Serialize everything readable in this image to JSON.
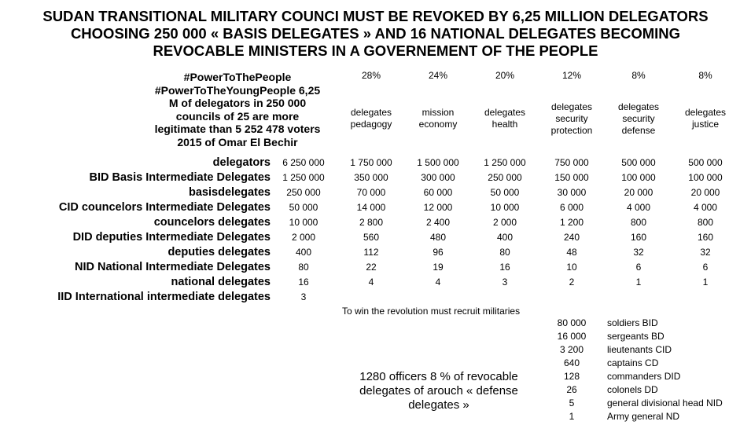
{
  "title": [
    "SUDAN TRANSITIONAL MILITARY COUNCI MUST BE REVOKED BY 6,25 MILLION DELEGATORS",
    "CHOOSING 250 000 « BASIS DELEGATES » AND 16 NATIONAL DELEGATES BECOMING",
    "REVOCABLE MINISTERS IN A GOVERNEMENT OF THE PEOPLE"
  ],
  "intro": [
    "#PowerToThePeople",
    "#PowerToTheYoungPeople 6,25",
    "M of delegators in 250 000",
    "councils of 25 are more",
    "legitimate than 5 252 478 voters",
    "2015 of Omar El Bechir"
  ],
  "columns": [
    {
      "percent": "28%",
      "lines": [
        "delegates",
        "pedagogy"
      ]
    },
    {
      "percent": "24%",
      "lines": [
        "mission",
        "economy"
      ]
    },
    {
      "percent": "20%",
      "lines": [
        "delegates",
        "health"
      ]
    },
    {
      "percent": "12%",
      "lines": [
        "delegates",
        "security",
        "protection"
      ]
    },
    {
      "percent": "8%",
      "lines": [
        "delegates",
        "security",
        "defense"
      ]
    },
    {
      "percent": "8%",
      "lines": [
        "delegates",
        "justice"
      ]
    }
  ],
  "rows": [
    {
      "label": "delegators",
      "total": "6 250 000",
      "values": [
        "1 750 000",
        "1 500 000",
        "1 250 000",
        "750 000",
        "500 000",
        "500 000"
      ]
    },
    {
      "label": "BID Basis Intermediate Delegates",
      "total": "1 250 000",
      "values": [
        "350 000",
        "300 000",
        "250 000",
        "150 000",
        "100 000",
        "100 000"
      ]
    },
    {
      "label": "basisdelegates",
      "total": "250 000",
      "values": [
        "70 000",
        "60 000",
        "50 000",
        "30 000",
        "20 000",
        "20 000"
      ]
    },
    {
      "label": "CID  councelors Intermediate Delegates",
      "total": "50 000",
      "values": [
        "14 000",
        "12 000",
        "10 000",
        "6 000",
        "4 000",
        "4 000"
      ]
    },
    {
      "label": "councelors delegates",
      "total": "10 000",
      "values": [
        "2 800",
        "2 400",
        "2 000",
        "1 200",
        "800",
        "800"
      ]
    },
    {
      "label": "DID deputies Intermediate Delegates",
      "total": "2 000",
      "values": [
        "560",
        "480",
        "400",
        "240",
        "160",
        "160"
      ]
    },
    {
      "label": "deputies delegates",
      "total": "400",
      "values": [
        "112",
        "96",
        "80",
        "48",
        "32",
        "32"
      ]
    },
    {
      "label": "NID National Intermediate Delegates",
      "total": "80",
      "values": [
        "22",
        "19",
        "16",
        "10",
        "6",
        "6"
      ]
    },
    {
      "label": "national delegates",
      "total": "16",
      "values": [
        "4",
        "4",
        "3",
        "2",
        "1",
        "1"
      ]
    },
    {
      "label": "IID International intermediate delegates",
      "total": "3",
      "values": []
    }
  ],
  "recruit_note": "To win the revolution must recruit militaries",
  "military": [
    {
      "count": "80 000",
      "label": "soldiers BID"
    },
    {
      "count": "16 000",
      "label": "sergeants BD"
    },
    {
      "count": "3 200",
      "label": "lieutenants CID"
    },
    {
      "count": "640",
      "label": "captains CD"
    },
    {
      "count": "128",
      "label": "commanders DID"
    },
    {
      "count": "26",
      "label": "colonels DD"
    },
    {
      "count": "5",
      "label": "general divisional head NID"
    },
    {
      "count": "1",
      "label": "Army general ND"
    }
  ],
  "officers_note": "1280 officers 8 % of revocable delegates of arouch « defense delegates »"
}
